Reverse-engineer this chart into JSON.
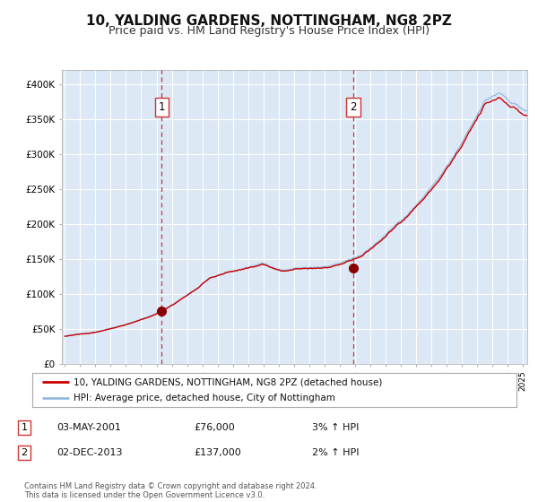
{
  "title": "10, YALDING GARDENS, NOTTINGHAM, NG8 2PZ",
  "subtitle": "Price paid vs. HM Land Registry's House Price Index (HPI)",
  "title_fontsize": 11,
  "subtitle_fontsize": 9,
  "background_color": "#ffffff",
  "plot_bg_color": "#dce8f5",
  "grid_color": "#ffffff",
  "ylim": [
    0,
    420000
  ],
  "yticks": [
    0,
    50000,
    100000,
    150000,
    200000,
    250000,
    300000,
    350000,
    400000
  ],
  "ytick_labels": [
    "£0",
    "£50K",
    "£100K",
    "£150K",
    "£200K",
    "£250K",
    "£300K",
    "£350K",
    "£400K"
  ],
  "purchase1_date": 2001.35,
  "purchase1_price": 76000,
  "purchase2_date": 2013.92,
  "purchase2_price": 137000,
  "red_line_color": "#cc0000",
  "blue_line_color": "#99bbdd",
  "marker_color": "#880000",
  "dashed_line_color": "#cc3333",
  "legend_red_label": "10, YALDING GARDENS, NOTTINGHAM, NG8 2PZ (detached house)",
  "legend_blue_label": "HPI: Average price, detached house, City of Nottingham",
  "note1_label": "1",
  "note1_date": "03-MAY-2001",
  "note1_price": "£76,000",
  "note1_pct": "3% ↑ HPI",
  "note2_label": "2",
  "note2_date": "02-DEC-2013",
  "note2_price": "£137,000",
  "note2_pct": "2% ↑ HPI",
  "footer": "Contains HM Land Registry data © Crown copyright and database right 2024.\nThis data is licensed under the Open Government Licence v3.0.",
  "xstart": 1995,
  "xend": 2025
}
